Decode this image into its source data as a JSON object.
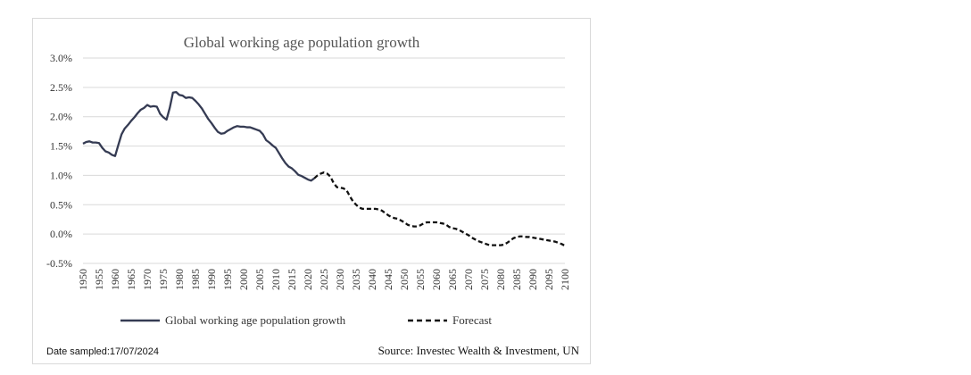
{
  "chart_data": {
    "type": "line",
    "title": "Global working age population growth",
    "xlabel": "",
    "ylabel": "",
    "xlim": [
      1950,
      2100
    ],
    "ylim": [
      -0.005,
      0.03
    ],
    "y_ticks": [
      "3.0%",
      "2.5%",
      "2.0%",
      "1.5%",
      "1.0%",
      "0.5%",
      "0.0%",
      "-0.5%"
    ],
    "y_tick_values": [
      0.03,
      0.025,
      0.02,
      0.015,
      0.01,
      0.005,
      0.0,
      -0.005
    ],
    "x_ticks": [
      "1950",
      "1955",
      "1960",
      "1965",
      "1970",
      "1975",
      "1980",
      "1985",
      "1990",
      "1995",
      "2000",
      "2005",
      "2010",
      "2015",
      "2020",
      "2025",
      "2030",
      "2035",
      "2040",
      "2045",
      "2050",
      "2055",
      "2060",
      "2065",
      "2070",
      "2075",
      "2080",
      "2085",
      "2090",
      "2095",
      "2100"
    ],
    "grid": true,
    "legend_position": "bottom",
    "series": [
      {
        "name": "Global working age population growth",
        "color": "#353b53",
        "style": "solid",
        "x": [
          1950,
          1951,
          1952,
          1953,
          1954,
          1955,
          1956,
          1957,
          1958,
          1959,
          1960,
          1961,
          1962,
          1963,
          1964,
          1965,
          1966,
          1967,
          1968,
          1969,
          1970,
          1971,
          1972,
          1973,
          1974,
          1975,
          1976,
          1977,
          1978,
          1979,
          1980,
          1981,
          1982,
          1983,
          1984,
          1985,
          1986,
          1987,
          1988,
          1989,
          1990,
          1991,
          1992,
          1993,
          1994,
          1995,
          1996,
          1997,
          1998,
          1999,
          2000,
          2001,
          2002,
          2003,
          2004,
          2005,
          2006,
          2007,
          2008,
          2009,
          2010,
          2011,
          2012,
          2013,
          2014,
          2015,
          2016,
          2017,
          2018,
          2019,
          2020,
          2021,
          2022
        ],
        "y": [
          0.0154,
          0.0157,
          0.0158,
          0.0156,
          0.0156,
          0.0155,
          0.0147,
          0.0141,
          0.0139,
          0.0135,
          0.0133,
          0.0152,
          0.017,
          0.018,
          0.0186,
          0.0193,
          0.0199,
          0.0206,
          0.0212,
          0.0215,
          0.022,
          0.0217,
          0.0218,
          0.0217,
          0.0205,
          0.0199,
          0.0195,
          0.0215,
          0.0241,
          0.0242,
          0.0237,
          0.0236,
          0.0232,
          0.0233,
          0.0232,
          0.0227,
          0.0221,
          0.0214,
          0.0205,
          0.0196,
          0.0189,
          0.0181,
          0.0174,
          0.0171,
          0.0172,
          0.0176,
          0.0179,
          0.0182,
          0.0184,
          0.0183,
          0.0183,
          0.0182,
          0.0182,
          0.018,
          0.0178,
          0.0176,
          0.017,
          0.016,
          0.0156,
          0.0151,
          0.0147,
          0.0138,
          0.0129,
          0.0121,
          0.0115,
          0.0112,
          0.0107,
          0.0101,
          0.0099,
          0.0096,
          0.0093,
          0.0091,
          0.0095
        ]
      },
      {
        "name": "Forecast",
        "color": "#111111",
        "style": "dashed",
        "x": [
          2022,
          2023,
          2024,
          2025,
          2026,
          2027,
          2028,
          2029,
          2030,
          2031,
          2032,
          2033,
          2034,
          2035,
          2036,
          2037,
          2038,
          2039,
          2040,
          2041,
          2042,
          2043,
          2044,
          2045,
          2046,
          2047,
          2048,
          2049,
          2050,
          2051,
          2052,
          2053,
          2054,
          2055,
          2056,
          2057,
          2058,
          2059,
          2060,
          2061,
          2062,
          2063,
          2064,
          2065,
          2066,
          2067,
          2068,
          2069,
          2070,
          2071,
          2072,
          2073,
          2074,
          2075,
          2076,
          2077,
          2078,
          2079,
          2080,
          2081,
          2082,
          2083,
          2084,
          2085,
          2086,
          2087,
          2088,
          2089,
          2090,
          2091,
          2092,
          2093,
          2094,
          2095,
          2096,
          2097,
          2098,
          2099,
          2100
        ],
        "y": [
          0.0095,
          0.01,
          0.0103,
          0.0105,
          0.0103,
          0.0098,
          0.0087,
          0.008,
          0.0079,
          0.0078,
          0.0075,
          0.0065,
          0.0056,
          0.005,
          0.0045,
          0.0043,
          0.0043,
          0.0043,
          0.0043,
          0.0043,
          0.0042,
          0.004,
          0.0036,
          0.0032,
          0.0029,
          0.0027,
          0.0026,
          0.0023,
          0.002,
          0.0016,
          0.0014,
          0.0013,
          0.0013,
          0.0015,
          0.0018,
          0.002,
          0.002,
          0.002,
          0.002,
          0.0019,
          0.0018,
          0.0016,
          0.0012,
          0.001,
          0.0009,
          0.0007,
          0.0004,
          0.0001,
          -0.0002,
          -0.0006,
          -0.0009,
          -0.0012,
          -0.0014,
          -0.0016,
          -0.0018,
          -0.0019,
          -0.0019,
          -0.0019,
          -0.0019,
          -0.0018,
          -0.0015,
          -0.0011,
          -0.0007,
          -0.0005,
          -0.0004,
          -0.0004,
          -0.0005,
          -0.0005,
          -0.0006,
          -0.0007,
          -0.0008,
          -0.0009,
          -0.001,
          -0.0011,
          -0.0012,
          -0.0013,
          -0.0015,
          -0.0017,
          -0.002
        ]
      }
    ]
  },
  "footer": {
    "date_sampled": "Date sampled:17/07/2024",
    "source": "Source: Investec Wealth & Investment, UN"
  }
}
